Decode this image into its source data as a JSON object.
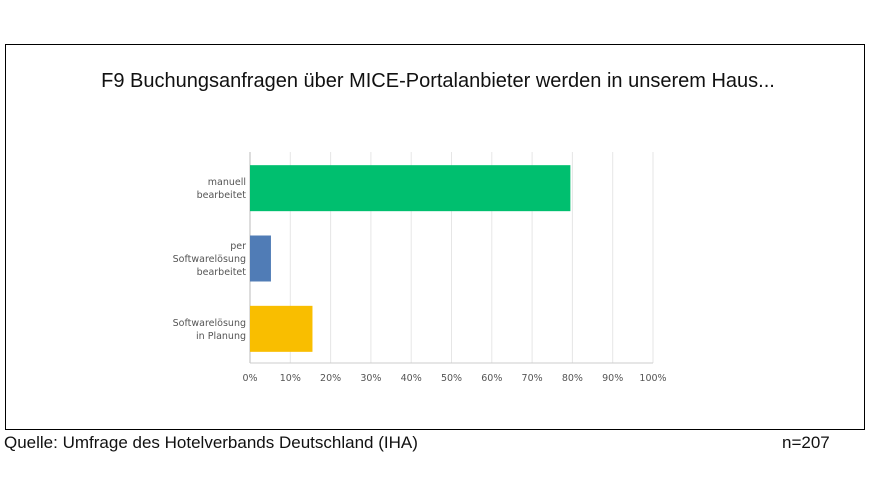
{
  "chart_data": {
    "type": "bar",
    "orientation": "horizontal",
    "title": "F9 Buchungsanfragen über MICE-Portalanbieter werden in unserem Haus...",
    "categories": [
      [
        "manuell",
        "bearbeitet"
      ],
      [
        "per",
        "Softwarelösung",
        "bearbeitet"
      ],
      [
        "Softwarelösung",
        "in Planung"
      ]
    ],
    "values": [
      79.5,
      5.2,
      15.5
    ],
    "colors": [
      "#00bf6f",
      "#507cb6",
      "#f9be00"
    ],
    "xlim": [
      0,
      100
    ],
    "ticks": [
      "0%",
      "10%",
      "20%",
      "30%",
      "40%",
      "50%",
      "60%",
      "70%",
      "80%",
      "90%",
      "100%"
    ],
    "grid": true
  },
  "footer": {
    "source": "Quelle: Umfrage des Hotelverbands Deutschland (IHA)",
    "n": "n=207"
  }
}
